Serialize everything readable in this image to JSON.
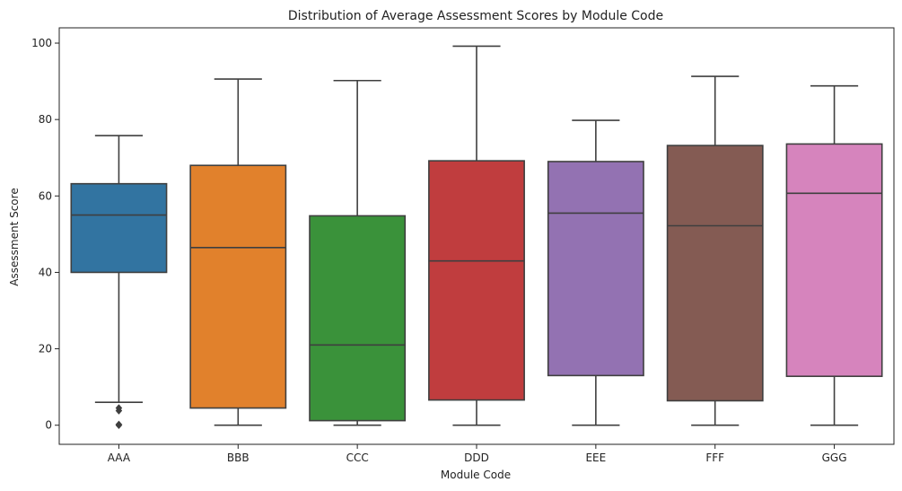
{
  "chart_data": {
    "type": "box",
    "title": "Distribution of Average Assessment Scores by Module Code",
    "xlabel": "Module Code",
    "ylabel": "Assessment Score",
    "ylim": [
      -5,
      104
    ],
    "yticks": [
      0,
      20,
      40,
      60,
      80,
      100
    ],
    "grid": false,
    "legend": "none",
    "categories": [
      "AAA",
      "BBB",
      "CCC",
      "DDD",
      "EEE",
      "FFF",
      "GGG"
    ],
    "colors": [
      "#3274A1",
      "#E1812C",
      "#3A923A",
      "#C03D3E",
      "#9372B2",
      "#845B53",
      "#D684BD"
    ],
    "edge_color": "#3f3f3f",
    "boxes": [
      {
        "category": "AAA",
        "whisker_low": 6,
        "q1": 40,
        "median": 55,
        "q3": 63.2,
        "whisker_high": 75.8,
        "outliers": [
          0,
          0.2,
          3.8,
          4.5
        ]
      },
      {
        "category": "BBB",
        "whisker_low": 0,
        "q1": 4.5,
        "median": 46.5,
        "q3": 68,
        "whisker_high": 90.6,
        "outliers": []
      },
      {
        "category": "CCC",
        "whisker_low": 0,
        "q1": 1.2,
        "median": 21,
        "q3": 54.8,
        "whisker_high": 90.2,
        "outliers": []
      },
      {
        "category": "DDD",
        "whisker_low": 0,
        "q1": 6.6,
        "median": 43,
        "q3": 69.2,
        "whisker_high": 99.2,
        "outliers": []
      },
      {
        "category": "EEE",
        "whisker_low": 0,
        "q1": 13,
        "median": 55.5,
        "q3": 69,
        "whisker_high": 79.8,
        "outliers": []
      },
      {
        "category": "FFF",
        "whisker_low": 0,
        "q1": 6.4,
        "median": 52.2,
        "q3": 73.2,
        "whisker_high": 91.3,
        "outliers": []
      },
      {
        "category": "GGG",
        "whisker_low": 0,
        "q1": 12.8,
        "median": 60.7,
        "q3": 73.6,
        "whisker_high": 88.8,
        "outliers": []
      }
    ]
  }
}
